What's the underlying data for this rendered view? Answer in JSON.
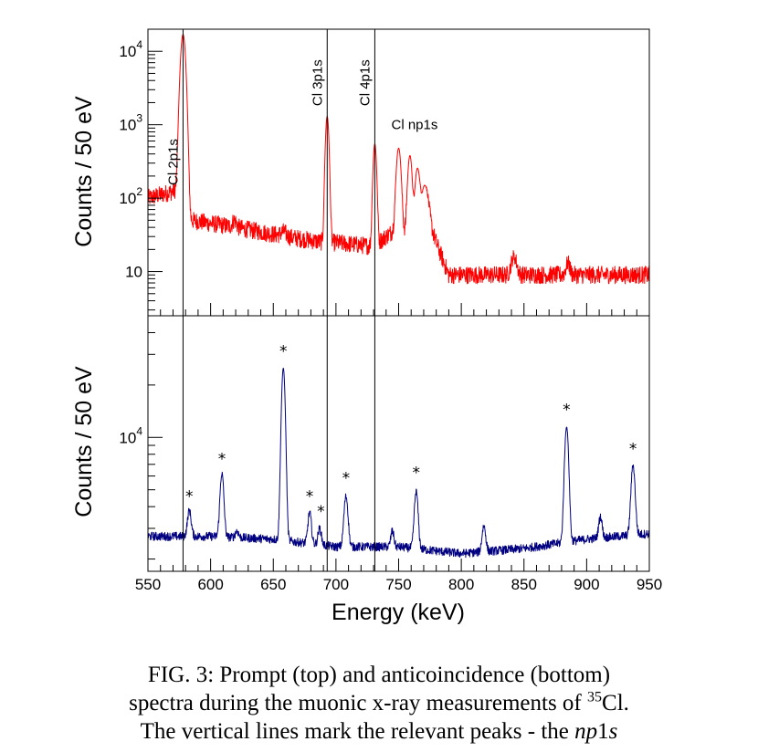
{
  "chart_data": [
    {
      "type": "line",
      "panel": "top",
      "ylabel": "Counts / 50 eV",
      "y_scale": "log",
      "xlim": [
        550,
        950
      ],
      "ylim": [
        2.5,
        20000
      ],
      "y_ticks": [
        {
          "value": 10,
          "label": "10"
        },
        {
          "value": 100,
          "label": "10",
          "exp": "2"
        },
        {
          "value": 1000,
          "label": "10",
          "exp": "3"
        },
        {
          "value": 10000,
          "label": "10",
          "exp": "4"
        }
      ],
      "color": "#ff0000",
      "background_level": [
        [
          550,
          100
        ],
        [
          575,
          130
        ],
        [
          584,
          50
        ],
        [
          620,
          40
        ],
        [
          660,
          30
        ],
        [
          690,
          25
        ],
        [
          697,
          25
        ],
        [
          730,
          22
        ],
        [
          745,
          35
        ],
        [
          778,
          30
        ],
        [
          790,
          9
        ],
        [
          950,
          9
        ]
      ],
      "peaks": [
        {
          "x": 578,
          "y": 17000,
          "width": 1.6
        },
        {
          "x": 619,
          "y": 50,
          "width": 1.5
        },
        {
          "x": 658,
          "y": 35,
          "width": 2.0
        },
        {
          "x": 693,
          "y": 1300,
          "width": 1.1
        },
        {
          "x": 731,
          "y": 550,
          "width": 1.1
        },
        {
          "x": 750,
          "y": 480,
          "width": 1.5
        },
        {
          "x": 759,
          "y": 380,
          "width": 1.4
        },
        {
          "x": 765,
          "y": 250,
          "width": 1.6
        },
        {
          "x": 771,
          "y": 150,
          "width": 2.5
        },
        {
          "x": 842,
          "y": 16,
          "width": 2.0
        },
        {
          "x": 885,
          "y": 13,
          "width": 1.5
        }
      ],
      "annotations": [
        {
          "text": "Cl 2p1s",
          "x": 578,
          "y": 150,
          "orientation": "vertical"
        },
        {
          "text": "Cl 3p1s",
          "x": 693,
          "y": 1800,
          "orientation": "vertical"
        },
        {
          "text": "Cl 4p1s",
          "x": 731,
          "y": 1800,
          "orientation": "vertical"
        },
        {
          "text": "Cl np1s",
          "x": 750,
          "y": 1000,
          "orientation": "horizontal"
        }
      ]
    },
    {
      "type": "line",
      "panel": "bottom",
      "ylabel": "Counts / 50 eV",
      "xlabel": "Energy (keV)",
      "y_scale": "log",
      "xlim": [
        550,
        950
      ],
      "ylim": [
        1700,
        50000
      ],
      "x_ticks": [
        550,
        600,
        650,
        700,
        750,
        800,
        850,
        900,
        950
      ],
      "y_ticks": [
        {
          "value": 10000,
          "label": "10",
          "exp": "4"
        }
      ],
      "color": "#000080",
      "background_level": [
        [
          550,
          2700
        ],
        [
          600,
          2700
        ],
        [
          650,
          2600
        ],
        [
          700,
          2350
        ],
        [
          750,
          2350
        ],
        [
          800,
          2150
        ],
        [
          850,
          2300
        ],
        [
          900,
          2600
        ],
        [
          950,
          2800
        ]
      ],
      "peaks": [
        {
          "x": 583,
          "y": 3800,
          "width": 1.4
        },
        {
          "x": 609,
          "y": 6200,
          "width": 1.4
        },
        {
          "x": 621,
          "y": 2900,
          "width": 1.3
        },
        {
          "x": 658,
          "y": 25000,
          "width": 1.4
        },
        {
          "x": 679,
          "y": 3700,
          "width": 1.3
        },
        {
          "x": 687,
          "y": 3000,
          "width": 1.3
        },
        {
          "x": 708,
          "y": 4600,
          "width": 1.5
        },
        {
          "x": 745,
          "y": 2900,
          "width": 1.2
        },
        {
          "x": 764,
          "y": 4900,
          "width": 1.4
        },
        {
          "x": 818,
          "y": 3100,
          "width": 1.4
        },
        {
          "x": 884,
          "y": 11500,
          "width": 1.5
        },
        {
          "x": 911,
          "y": 3500,
          "width": 1.3
        },
        {
          "x": 937,
          "y": 6900,
          "width": 1.5
        }
      ],
      "markers": [
        {
          "text": "*",
          "x": 583,
          "y": 4400
        },
        {
          "text": "*",
          "x": 609,
          "y": 7200
        },
        {
          "text": "*",
          "x": 658,
          "y": 30000
        },
        {
          "text": "*",
          "x": 679,
          "y": 4400
        },
        {
          "text": "*",
          "x": 688,
          "y": 3600
        },
        {
          "text": "*",
          "x": 708,
          "y": 5600
        },
        {
          "text": "*",
          "x": 764,
          "y": 6000
        },
        {
          "text": "*",
          "x": 884,
          "y": 13800
        },
        {
          "text": "*",
          "x": 937,
          "y": 8200
        }
      ]
    }
  ],
  "vertical_lines": [
    578,
    693,
    731
  ],
  "caption": {
    "line1": "FIG. 3: Prompt (top) and anticoincidence (bottom)",
    "line2_pre": "spectra during the muonic x-ray measurements of ",
    "line2_sup": "35",
    "line2_post": "Cl.",
    "line3_pre": "The vertical lines mark the relevant peaks - the ",
    "line3_em": "np",
    "line3_em2": "1",
    "line3_em3": "s"
  }
}
